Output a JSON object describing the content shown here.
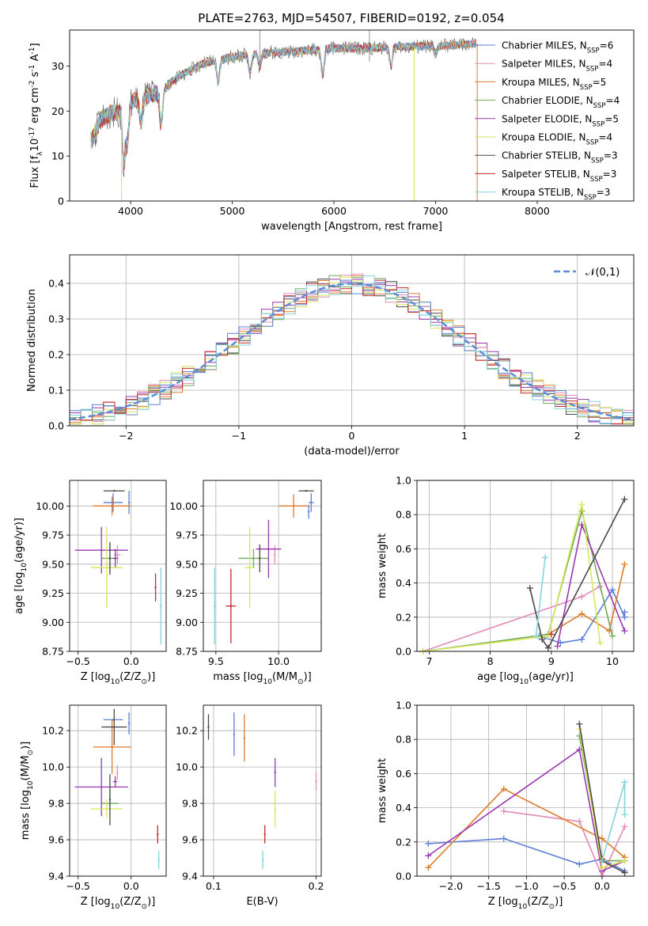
{
  "figure_title": "PLATE=2763, MJD=54507, FIBERID=0192, z=0.054",
  "models": [
    {
      "name": "Chabrier MILES",
      "color": "#5b7fd4",
      "n_ssp": "6"
    },
    {
      "name": "Salpeter MILES",
      "color": "#e38bb9",
      "n_ssp": "4"
    },
    {
      "name": "Kroupa MILES",
      "color": "#e07b2a",
      "n_ssp": "5"
    },
    {
      "name": "Chabrier ELODIE",
      "color": "#72a85a",
      "n_ssp": "4"
    },
    {
      "name": "Salpeter ELODIE",
      "color": "#9a38b0",
      "n_ssp": "5"
    },
    {
      "name": "Kroupa ELODIE",
      "color": "#d8e65a",
      "n_ssp": "4"
    },
    {
      "name": "Chabrier STELIB",
      "color": "#4a4a4a",
      "n_ssp": "3"
    },
    {
      "name": "Salpeter STELIB",
      "color": "#c42a2a",
      "n_ssp": "3"
    },
    {
      "name": "Kroupa STELIB",
      "color": "#85d3dc",
      "n_ssp": "3"
    }
  ],
  "chart_data": [
    {
      "id": "spectrum",
      "type": "line",
      "title": "PLATE=2763, MJD=54507, FIBERID=0192, z=0.054",
      "xlabel": "wavelength [Angstrom, rest frame]",
      "ylabel": "Flux [f$_\\lambda$10$^{-17}$ erg cm$^{-2}$ s$^{-1}$ A$^{-1}$]",
      "xlim": [
        3400,
        8950
      ],
      "ylim": [
        0,
        38
      ],
      "xticks": [
        4000,
        5000,
        6000,
        7000,
        8000
      ],
      "yticks": [
        0,
        10,
        20,
        30
      ],
      "grid": false,
      "legend": "right",
      "continuum": {
        "x": [
          3610,
          3700,
          3800,
          3900,
          4000,
          4100,
          4200,
          4300,
          4400,
          4500,
          4700,
          5000,
          5300,
          5600,
          6000,
          6300,
          6600,
          7000,
          7200,
          7400
        ],
        "y": [
          13,
          18,
          19.5,
          20,
          22,
          23,
          23.5,
          24,
          26.5,
          28,
          30.5,
          32,
          33,
          33.2,
          34,
          34,
          34.2,
          34.5,
          34.6,
          35
        ]
      }
    },
    {
      "id": "residuals",
      "type": "line",
      "xlabel": "(data-model)/error",
      "ylabel": "Normed distribution",
      "xlim": [
        -2.5,
        2.5
      ],
      "ylim": [
        0,
        0.48
      ],
      "xticks": [
        -2,
        -1,
        0,
        1,
        2
      ],
      "yticks": [
        0.0,
        0.1,
        0.2,
        0.3,
        0.4
      ],
      "grid": true,
      "legend": "top-right",
      "reference_label": "$\\mathcal{N}(0,1)$",
      "reference": {
        "mu": 0,
        "sigma": 1
      }
    },
    {
      "id": "age-vs-Z",
      "type": "scatter",
      "xlabel": "Z [log$_{10}$(Z/Z$_\\odot$)]",
      "ylabel": "age  [log$_{10}$(age/yr)]",
      "xlim": [
        -0.58,
        0.33
      ],
      "ylim": [
        8.75,
        10.22
      ],
      "xticks": [
        -0.5,
        0.0
      ],
      "yticks": [
        8.75,
        9.0,
        9.25,
        9.5,
        9.75,
        10.0
      ],
      "grid": true,
      "points": [
        {
          "model": 0,
          "x": -0.17,
          "y": 10.03,
          "xerr": 0.09,
          "yerr": 0.08
        },
        {
          "model": 0,
          "x": -0.02,
          "y": 10.03,
          "xerr": 0.0,
          "yerr": 0.1
        },
        {
          "model": 1,
          "x": -0.13,
          "y": 9.58,
          "xerr": 0.03,
          "yerr": 0.08
        },
        {
          "model": 2,
          "x": -0.18,
          "y": 10.0,
          "xerr": 0.18,
          "yerr": 0.08
        },
        {
          "model": 3,
          "x": -0.2,
          "y": 9.55,
          "xerr": 0.08,
          "yerr": 0.12
        },
        {
          "model": 4,
          "x": -0.28,
          "y": 9.62,
          "xerr": 0.25,
          "yerr": 0.2
        },
        {
          "model": 4,
          "x": -0.15,
          "y": 9.55,
          "xerr": 0.02,
          "yerr": 0.08
        },
        {
          "model": 5,
          "x": -0.23,
          "y": 9.47,
          "xerr": 0.15,
          "yerr": 0.35
        },
        {
          "model": 6,
          "x": -0.16,
          "y": 10.13,
          "xerr": 0.1,
          "yerr": 0.0
        },
        {
          "model": 6,
          "x": -0.2,
          "y": 9.55,
          "xerr": 0.0,
          "yerr": 0.14
        },
        {
          "model": 7,
          "x": 0.23,
          "y": 9.3,
          "xerr": 0.0,
          "yerr": 0.12
        },
        {
          "model": 8,
          "x": 0.28,
          "y": 9.14,
          "xerr": 0.0,
          "yerr": 0.33
        }
      ]
    },
    {
      "id": "age-vs-mass",
      "type": "scatter",
      "xlabel": "mass [log$_{10}$(M/M$_\\odot$)]",
      "ylabel": "",
      "xlim": [
        9.4,
        10.34
      ],
      "ylim": [
        8.75,
        10.22
      ],
      "xticks": [
        9.5,
        10.0
      ],
      "yticks": [
        8.75,
        9.0,
        9.25,
        9.5,
        9.75,
        10.0
      ],
      "grid": true,
      "points": [
        {
          "model": 0,
          "x": 10.26,
          "y": 10.03,
          "xerr": 0.02,
          "yerr": 0.08
        },
        {
          "model": 0,
          "x": 10.24,
          "y": 9.95,
          "xerr": 0.0,
          "yerr": 0.06
        },
        {
          "model": 1,
          "x": 9.97,
          "y": 9.58,
          "xerr": 0.0,
          "yerr": 0.08
        },
        {
          "model": 2,
          "x": 10.12,
          "y": 10.0,
          "xerr": 0.12,
          "yerr": 0.1
        },
        {
          "model": 3,
          "x": 9.8,
          "y": 9.55,
          "xerr": 0.12,
          "yerr": 0.08
        },
        {
          "model": 4,
          "x": 9.92,
          "y": 9.63,
          "xerr": 0.1,
          "yerr": 0.25
        },
        {
          "model": 5,
          "x": 9.77,
          "y": 9.47,
          "xerr": 0.04,
          "yerr": 0.35
        },
        {
          "model": 6,
          "x": 10.22,
          "y": 10.13,
          "xerr": 0.06,
          "yerr": 0.0
        },
        {
          "model": 6,
          "x": 9.85,
          "y": 9.55,
          "xerr": 0.0,
          "yerr": 0.12
        },
        {
          "model": 7,
          "x": 9.62,
          "y": 9.14,
          "xerr": 0.04,
          "yerr": 0.32
        },
        {
          "model": 8,
          "x": 9.49,
          "y": 9.14,
          "xerr": 0.0,
          "yerr": 0.33
        }
      ]
    },
    {
      "id": "weight-vs-age",
      "type": "line",
      "xlabel": "age  [log$_{10}$(age/yr)]",
      "ylabel": "mass weight",
      "xlim": [
        6.8,
        10.35
      ],
      "ylim": [
        0,
        1.0
      ],
      "xticks": [
        7,
        8,
        9,
        10
      ],
      "yticks": [
        0.0,
        0.2,
        0.4,
        0.6,
        0.8,
        1.0
      ],
      "grid": true,
      "series": [
        {
          "model": 0,
          "x": [
            8.8,
            9.15,
            9.5,
            10.0,
            10.2,
            10.2
          ],
          "y": [
            0.09,
            0.05,
            0.07,
            0.36,
            0.2,
            0.23
          ]
        },
        {
          "model": 1,
          "x": [
            6.9,
            9.5,
            9.8
          ],
          "y": [
            0.0,
            0.32,
            0.38
          ]
        },
        {
          "model": 2,
          "x": [
            8.95,
            9.5,
            9.95,
            10.2
          ],
          "y": [
            0.1,
            0.22,
            0.12,
            0.51
          ]
        },
        {
          "model": 3,
          "x": [
            6.9,
            8.95,
            9.5,
            10.0
          ],
          "y": [
            0.0,
            0.1,
            0.82,
            0.09
          ]
        },
        {
          "model": 4,
          "x": [
            9.1,
            9.5,
            10.2
          ],
          "y": [
            0.03,
            0.74,
            0.12
          ]
        },
        {
          "model": 5,
          "x": [
            6.9,
            8.95,
            9.5,
            9.8
          ],
          "y": [
            0.0,
            0.09,
            0.86,
            0.05
          ]
        },
        {
          "model": 6,
          "x": [
            8.65,
            8.85,
            8.95,
            10.2
          ],
          "y": [
            0.37,
            0.07,
            0.02,
            0.89
          ]
        },
        {
          "model": 7,
          "x": [
            9.0
          ],
          "y": [
            0.1
          ]
        },
        {
          "model": 8,
          "x": [
            8.75,
            8.9
          ],
          "y": [
            0.09,
            0.55
          ]
        }
      ]
    },
    {
      "id": "mass-vs-Z",
      "type": "scatter",
      "xlabel": "Z [log$_{10}$(Z/Z$_\\odot$)]",
      "ylabel": "mass [log$_{10}$(M/M$_\\odot$)]",
      "xlim": [
        -0.58,
        0.33
      ],
      "ylim": [
        9.4,
        10.34
      ],
      "xticks": [
        -0.5,
        0.0
      ],
      "yticks": [
        9.4,
        9.6,
        9.8,
        10.0,
        10.2
      ],
      "grid": true,
      "points": [
        {
          "model": 0,
          "x": -0.17,
          "y": 10.26,
          "xerr": 0.09,
          "yerr": 0.0
        },
        {
          "model": 0,
          "x": -0.02,
          "y": 10.24,
          "xerr": 0.0,
          "yerr": 0.06
        },
        {
          "model": 1,
          "x": -0.13,
          "y": 9.97,
          "xerr": 0.0,
          "yerr": 0.04
        },
        {
          "model": 2,
          "x": -0.18,
          "y": 10.11,
          "xerr": 0.18,
          "yerr": 0.15
        },
        {
          "model": 3,
          "x": -0.2,
          "y": 9.8,
          "xerr": 0.08,
          "yerr": 0.07
        },
        {
          "model": 4,
          "x": -0.28,
          "y": 9.89,
          "xerr": 0.25,
          "yerr": 0.16
        },
        {
          "model": 4,
          "x": -0.15,
          "y": 9.92,
          "xerr": 0.02,
          "yerr": 0.03
        },
        {
          "model": 5,
          "x": -0.23,
          "y": 9.77,
          "xerr": 0.15,
          "yerr": 0.05
        },
        {
          "model": 6,
          "x": -0.16,
          "y": 10.22,
          "xerr": 0.12,
          "yerr": 0.1
        },
        {
          "model": 6,
          "x": -0.2,
          "y": 9.82,
          "xerr": 0.0,
          "yerr": 0.14
        },
        {
          "model": 7,
          "x": 0.25,
          "y": 9.63,
          "xerr": 0.0,
          "yerr": 0.05
        },
        {
          "model": 8,
          "x": 0.26,
          "y": 9.49,
          "xerr": 0.0,
          "yerr": 0.05
        }
      ]
    },
    {
      "id": "mass-vs-EBV",
      "type": "scatter",
      "xlabel": "E(B-V)",
      "ylabel": "",
      "xlim": [
        0.09,
        0.205
      ],
      "ylim": [
        9.4,
        10.34
      ],
      "xticks": [
        0.1,
        0.2
      ],
      "yticks": [
        9.4,
        9.6,
        9.8,
        10.0,
        10.2
      ],
      "grid": true,
      "points": [
        {
          "model": 0,
          "x": 0.12,
          "y": 10.18,
          "xerr": 0.0,
          "yerr": 0.12
        },
        {
          "model": 1,
          "x": 0.2,
          "y": 9.92,
          "xerr": 0.0,
          "yerr": 0.05
        },
        {
          "model": 2,
          "x": 0.13,
          "y": 10.16,
          "xerr": 0.0,
          "yerr": 0.13
        },
        {
          "model": 4,
          "x": 0.16,
          "y": 9.97,
          "xerr": 0.0,
          "yerr": 0.08
        },
        {
          "model": 5,
          "x": 0.16,
          "y": 9.77,
          "xerr": 0.0,
          "yerr": 0.1
        },
        {
          "model": 6,
          "x": 0.095,
          "y": 10.22,
          "xerr": 0.0,
          "yerr": 0.07
        },
        {
          "model": 7,
          "x": 0.15,
          "y": 9.63,
          "xerr": 0.0,
          "yerr": 0.05
        },
        {
          "model": 8,
          "x": 0.148,
          "y": 9.49,
          "xerr": 0.0,
          "yerr": 0.05
        }
      ]
    },
    {
      "id": "weight-vs-Z",
      "type": "line",
      "xlabel": "Z [log$_{10}$(Z/Z$_\\odot$)]",
      "ylabel": "mass weight",
      "xlim": [
        -2.45,
        0.42
      ],
      "ylim": [
        0,
        1.0
      ],
      "xticks": [
        -2.0,
        -1.5,
        -1.0,
        -0.5,
        0.0
      ],
      "yticks": [
        0.0,
        0.2,
        0.4,
        0.6,
        0.8,
        1.0
      ],
      "grid": true,
      "series": [
        {
          "model": 0,
          "x": [
            -2.3,
            -1.3,
            -0.3,
            0.0,
            0.3
          ],
          "y": [
            0.19,
            0.22,
            0.07,
            0.1,
            0.03
          ]
        },
        {
          "model": 1,
          "x": [
            -1.3,
            -0.3,
            0.0,
            0.3
          ],
          "y": [
            0.38,
            0.32,
            0.0,
            0.29
          ]
        },
        {
          "model": 2,
          "x": [
            -2.3,
            -1.3,
            0.0,
            0.3
          ],
          "y": [
            0.05,
            0.51,
            0.22,
            0.11
          ]
        },
        {
          "model": 3,
          "x": [
            -0.3,
            0.0,
            0.3
          ],
          "y": [
            0.82,
            0.09,
            0.09
          ]
        },
        {
          "model": 4,
          "x": [
            -2.3,
            -0.3,
            0.0,
            0.3
          ],
          "y": [
            0.12,
            0.74,
            0.03,
            0.09
          ]
        },
        {
          "model": 5,
          "x": [
            -0.3,
            0.0,
            0.3
          ],
          "y": [
            0.86,
            0.05,
            0.09
          ]
        },
        {
          "model": 6,
          "x": [
            -0.3,
            0.0,
            0.3
          ],
          "y": [
            0.89,
            0.09,
            0.02
          ]
        },
        {
          "model": 7,
          "x": [
            0.0
          ],
          "y": [
            0.1
          ]
        },
        {
          "model": 8,
          "x": [
            0.0,
            0.3,
            0.3
          ],
          "y": [
            0.09,
            0.55,
            0.36
          ]
        }
      ]
    }
  ]
}
